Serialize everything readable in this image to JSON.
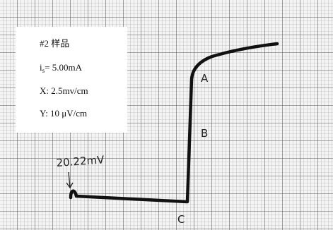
{
  "legend": {
    "line1": "#2 样品",
    "line2": {
      "main": "i",
      "sub": "s",
      "rest": "= 5.00mA"
    },
    "line3": "X: 2.5mv/cm",
    "line4": "Y: 10 μV/cm"
  },
  "annotation": "20.22mV",
  "points": {
    "a": "A",
    "b": "B",
    "c": "C"
  }
}
